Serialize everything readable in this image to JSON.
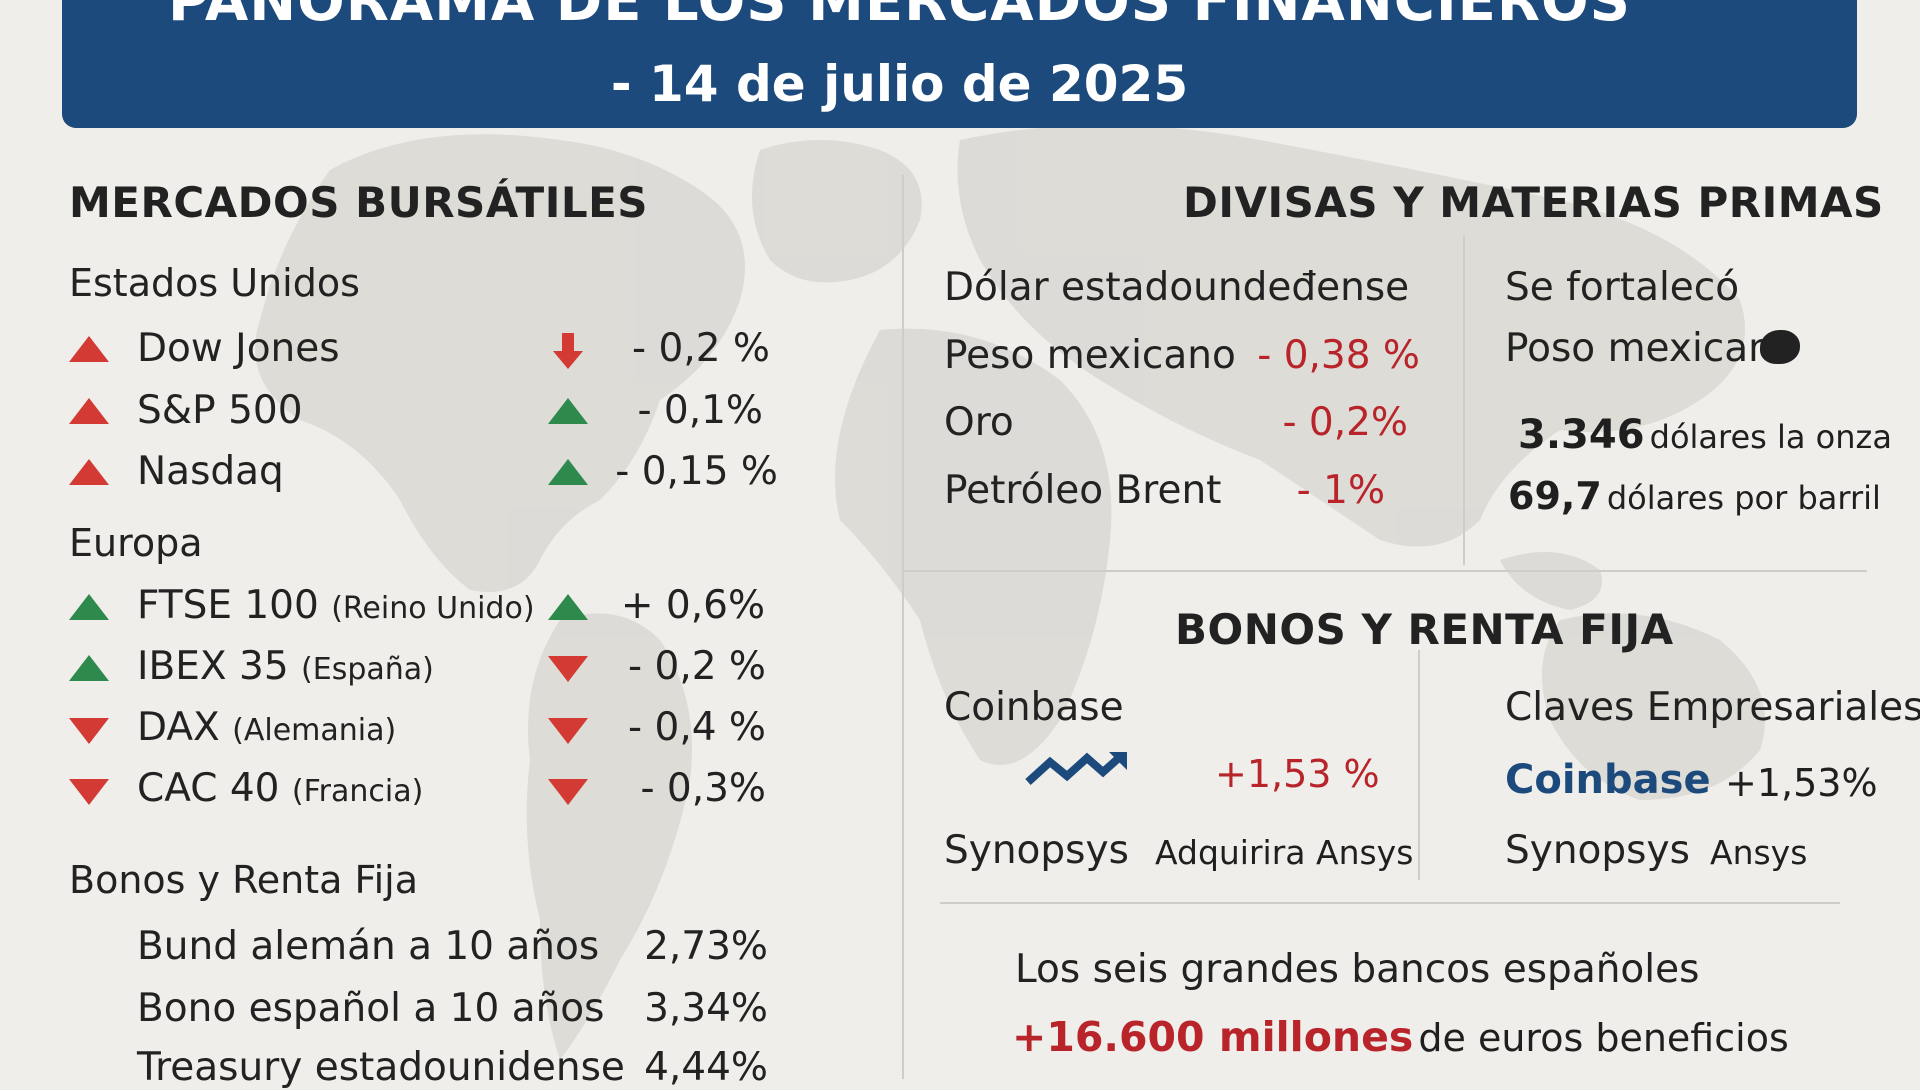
{
  "header": {
    "title": "PANORAMA DE LOS MERCADOS FINANCIEROS",
    "subtitle": "- 14 de julio de 2025"
  },
  "stock_markets": {
    "title": "MERCADOS BURSÁTILES",
    "us": {
      "region": "Estados Unidos",
      "items": [
        {
          "name": "Dow Jones",
          "sub": "",
          "value": "- 0,2 %",
          "icon": "triangle-up-red",
          "trend_icon": "arrow-down-red"
        },
        {
          "name": "S&P 500",
          "sub": "",
          "value": "- 0,1%",
          "icon": "triangle-up-red",
          "trend_icon": "triangle-up-green"
        },
        {
          "name": "Nasdaq",
          "sub": "",
          "value": "- 0,15 %",
          "icon": "triangle-up-red",
          "trend_icon": "triangle-up-green"
        }
      ]
    },
    "europe": {
      "region": "Europa",
      "items": [
        {
          "name": "FTSE 100",
          "sub": "(Reino Unido)",
          "value": "+ 0,6%",
          "icon": "triangle-up-green",
          "trend_icon": "triangle-up-green"
        },
        {
          "name": "IBEX 35",
          "sub": "(España)",
          "value": "- 0,2 %",
          "icon": "triangle-up-green",
          "trend_icon": "triangle-down-red"
        },
        {
          "name": "DAX",
          "sub": "(Alemania)",
          "value": "- 0,4 %",
          "icon": "triangle-down-red",
          "trend_icon": "triangle-down-red"
        },
        {
          "name": "CAC 40",
          "sub": "(Francia)",
          "value": "- 0,3%",
          "icon": "triangle-down-red",
          "trend_icon": "triangle-down-red"
        }
      ]
    },
    "bonds": {
      "title": "Bonos y Renta Fija",
      "items": [
        {
          "name": "Bund alemán a 10 años",
          "value": "2,73%"
        },
        {
          "name": "Bono español a 10 años",
          "value": "3,34%"
        },
        {
          "name": "Treasury estadounidense",
          "value": "4,44%"
        }
      ]
    }
  },
  "fx_commodities": {
    "title": "DIVISAS Y MATERIAS PRIMAS",
    "left": [
      {
        "name": "Dólar estadoundeđense",
        "value": ""
      },
      {
        "name": "Peso mexicano",
        "value": "- 0,38 %"
      },
      {
        "name": "Oro",
        "value": "- 0,2%"
      },
      {
        "name": "Petróleo Brent",
        "value": "- 1%"
      }
    ],
    "right": {
      "line1": "Se fortalecó",
      "line2": "Poso mexicano",
      "gold_amount": "3.346",
      "gold_unit": "dólares la onza",
      "oil_amount": "69,7",
      "oil_unit": "dólares por barril"
    }
  },
  "bonds_fixed_income": {
    "title": "BONOS Y RENTA FIJA",
    "left": {
      "company1": "Coinbase",
      "change1": "+1,53 %",
      "company2": "Synopsys",
      "note2": "Adquirira Ansys"
    },
    "right": {
      "title": "Claves Empresariales",
      "company1": "Coinbase",
      "change1": "+1,53%",
      "company2": "Synopsys",
      "note2": "Ansys"
    }
  },
  "banks": {
    "line1": "Los seis grandes bancos españoles",
    "highlight": "+16.600 millones",
    "rest": "de euros beneficios"
  },
  "colors": {
    "header_bg": "#1c4a7c",
    "negative": "#b8242a",
    "positive_icon": "#2e8a4c",
    "negative_icon": "#d33a33"
  }
}
